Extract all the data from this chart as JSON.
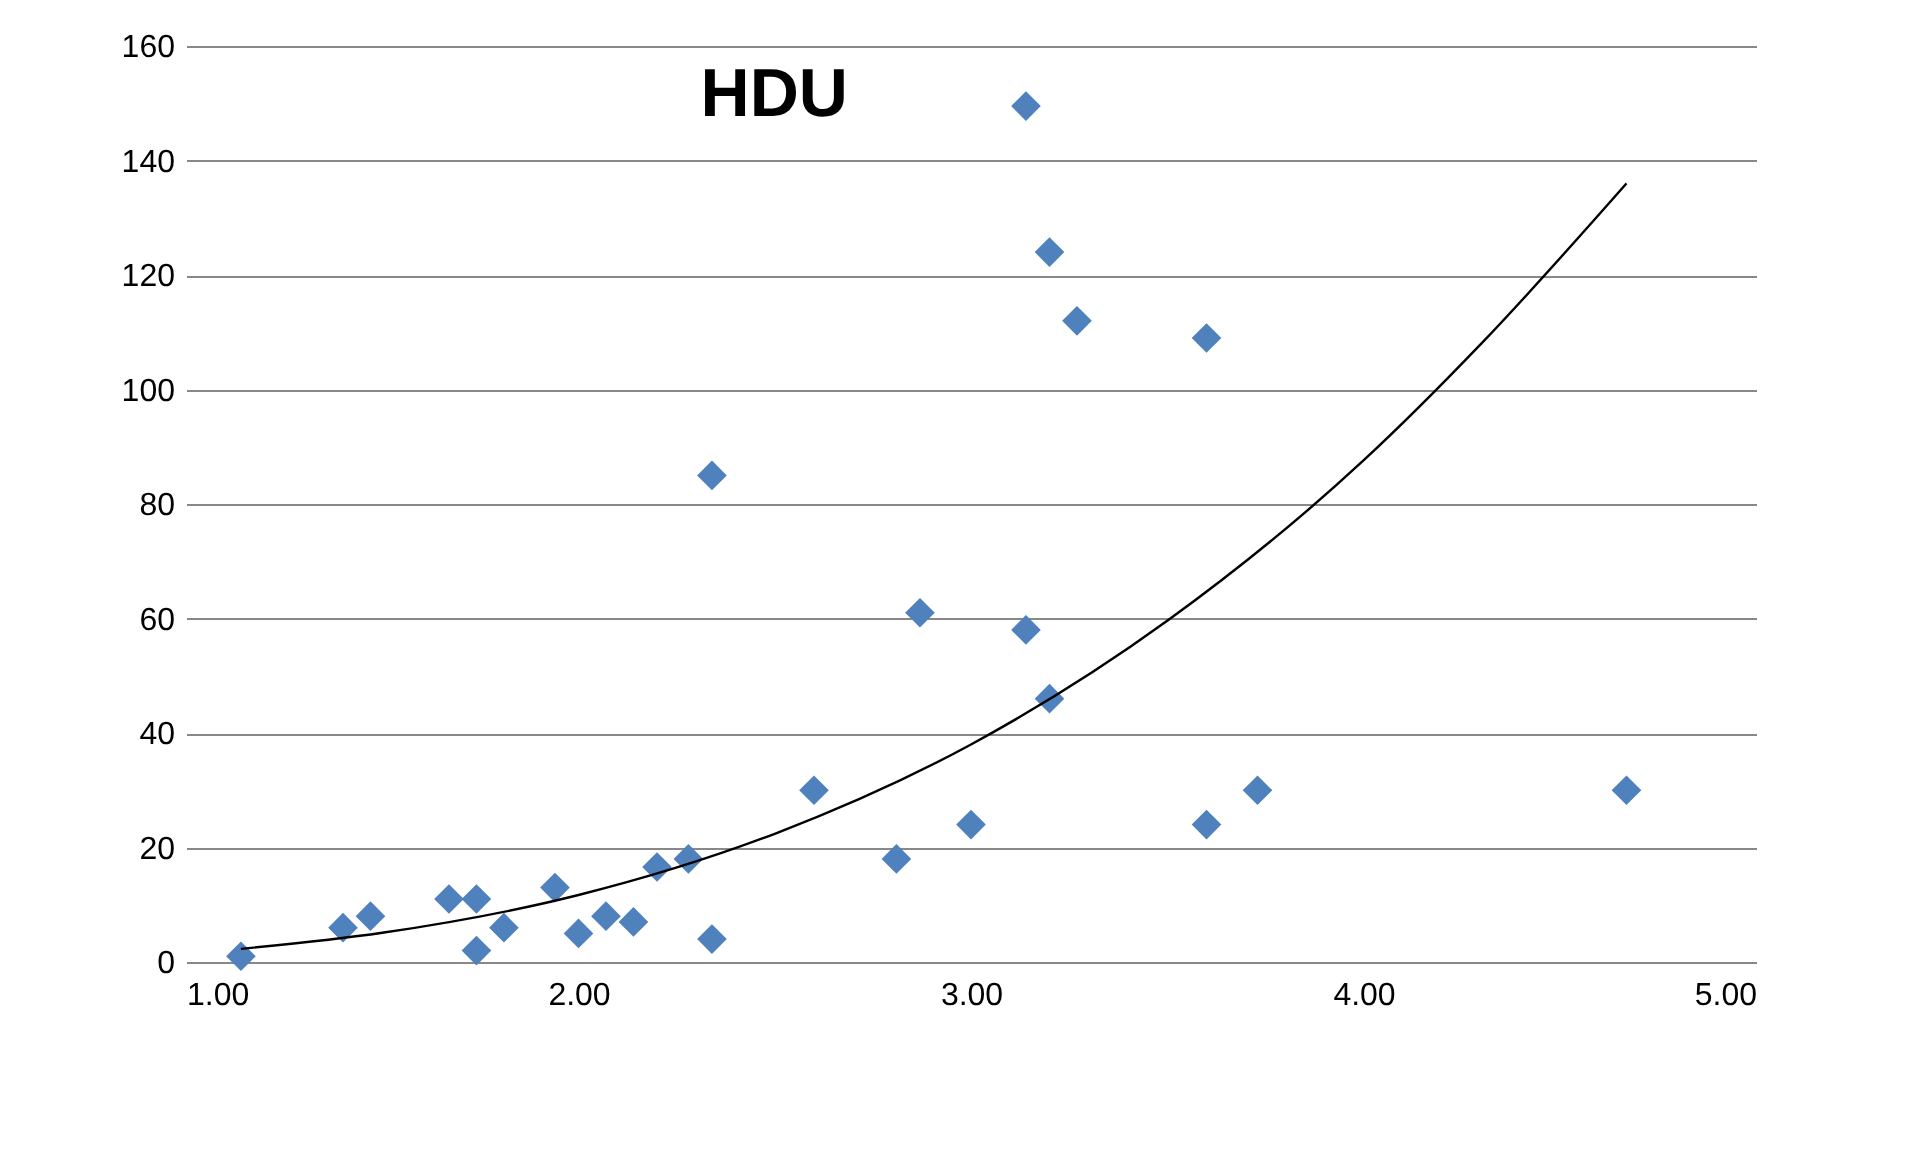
{
  "chart_data": {
    "type": "scatter",
    "title": "HDU",
    "series": [
      {
        "color": "#4f81bd",
        "marker": "diamond",
        "x": [
          1.14,
          1.4,
          1.47,
          1.67,
          1.74,
          1.74,
          1.81,
          1.94,
          2.0,
          2.07,
          2.14,
          2.2,
          2.28,
          2.34,
          2.6,
          2.81,
          3.0,
          2.34,
          2.87,
          3.14,
          3.2,
          3.14,
          3.2,
          3.27,
          3.6,
          3.6,
          3.73,
          4.67
        ],
        "values": [
          1,
          6,
          8,
          11,
          11,
          2,
          6,
          13,
          5,
          8,
          7,
          16.6,
          18,
          4,
          30,
          18,
          24,
          85,
          61,
          58,
          46,
          149.5,
          124,
          112,
          109,
          24,
          30,
          30
        ]
      },
      {
        "type": "line",
        "color": "#000000",
        "marker": "none",
        "line_style": "solid",
        "x": [
          1.14,
          1.5,
          2.0,
          2.5,
          3.0,
          3.5,
          4.0,
          4.3,
          4.67
        ],
        "values": [
          2.3,
          5.1,
          11.7,
          22.4,
          38,
          59.6,
          87.6,
          108,
          136
        ]
      }
    ],
    "xlim": [
      1,
      5
    ],
    "xticks": [
      {
        "value": 1,
        "label": "1.00"
      },
      {
        "value": 2,
        "label": "2.00"
      },
      {
        "value": 3,
        "label": "3.00"
      },
      {
        "value": 4,
        "label": "4.00"
      },
      {
        "value": 5,
        "label": "5.00"
      }
    ],
    "ylim": [
      0,
      160
    ],
    "yticks": [
      0,
      20,
      40,
      60,
      80,
      100,
      120,
      140,
      160
    ],
    "grid": "y"
  }
}
